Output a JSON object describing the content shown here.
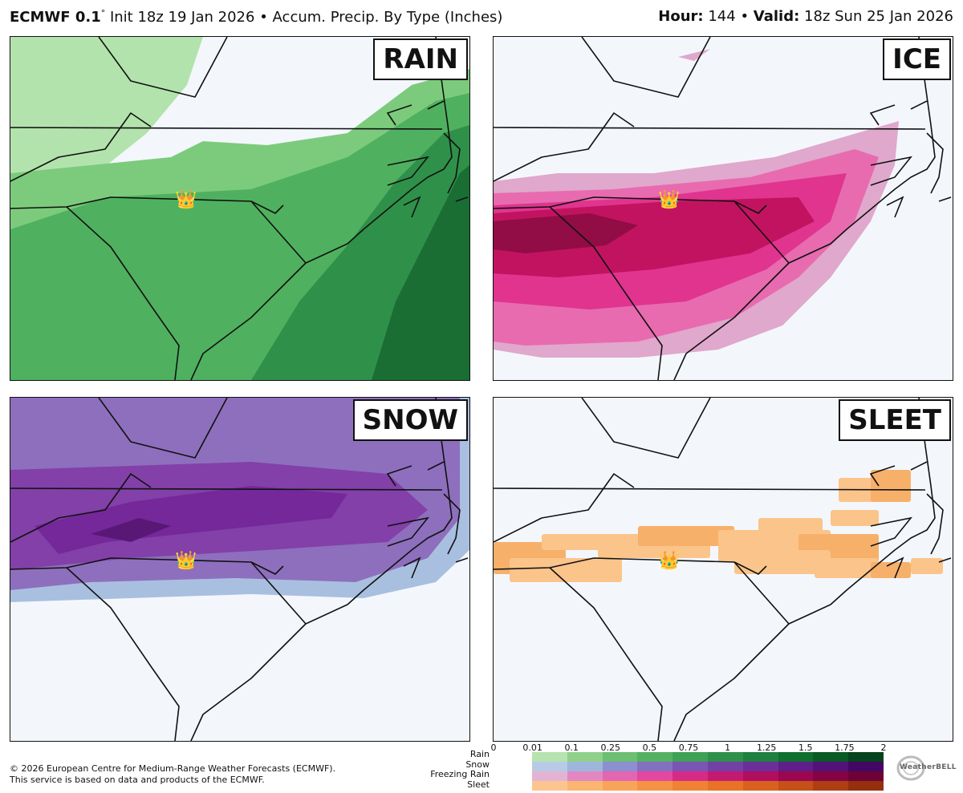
{
  "header": {
    "model": "ECMWF 0.1",
    "deg": "°",
    "init": "Init 18z 19 Jan 2026",
    "bullet": "•",
    "product": "Accum. Precip. By Type (Inches)",
    "hour_label": "Hour:",
    "hour_value": "144",
    "valid_label": "Valid:",
    "valid_value": "18z Sun 25 Jan 2026"
  },
  "panels": [
    {
      "id": "rain",
      "label": "RAIN",
      "base": "#b3e3ad",
      "c1": "#7ccb7c",
      "c2": "#4fb15f",
      "c3": "#2f9149",
      "c4": "#1a6e34"
    },
    {
      "id": "ice",
      "label": "ICE",
      "base": "#e0a8cc",
      "c1": "#e86bb0",
      "c2": "#e0348f",
      "c3": "#c21361",
      "c4": "#920c45"
    },
    {
      "id": "snow",
      "label": "SNOW",
      "base": "#a9bfe0",
      "c1": "#8e6fbd",
      "c2": "#8240a8",
      "c3": "#74289a",
      "c4": "#5a1876"
    },
    {
      "id": "sleet",
      "label": "SLEET",
      "base": "#fbc48a",
      "c1": "#f7b06a",
      "c2": "#f49a4a",
      "c3": "#ef8a3a",
      "c4": "#d9722a"
    }
  ],
  "marker_icon": "crown-icon",
  "marker_glyph": "👑",
  "legend": {
    "ticks": [
      "0",
      "0.01",
      "0.1",
      "0.25",
      "0.5",
      "0.75",
      "1",
      "1.25",
      "1.5",
      "1.75",
      "2"
    ],
    "rows": [
      "Rain",
      "Snow",
      "Freezing Rain",
      "Sleet"
    ],
    "colors": {
      "rain": [
        "#b6e3b0",
        "#8fd18b",
        "#6cbf73",
        "#55b162",
        "#3ea156",
        "#2f904b",
        "#20803f",
        "#0f6f2e",
        "#0a5a25",
        "#06431c"
      ],
      "snow": [
        "#b7cbe6",
        "#9fb6dc",
        "#8c8fd0",
        "#8470c0",
        "#7b55b3",
        "#7340a6",
        "#6a2f98",
        "#5e1f88",
        "#521277",
        "#420864"
      ],
      "freezing_rain": [
        "#e3b3d4",
        "#e287c1",
        "#e266b1",
        "#e2489f",
        "#d52b87",
        "#c31a71",
        "#b00e5f",
        "#9a0750",
        "#840443",
        "#6d0237"
      ],
      "sleet": [
        "#fcc590",
        "#fab573",
        "#f8a45a",
        "#f59344",
        "#f08235",
        "#e87228",
        "#d9611f",
        "#c55018",
        "#ad3f12",
        "#94300d"
      ]
    }
  },
  "footer": {
    "line1": "© 2026 European Centre for Medium-Range Weather Forecasts (ECMWF).",
    "line2": "This service is based on data and products of the ECMWF."
  },
  "logo": {
    "text": "WeatherBELL"
  }
}
